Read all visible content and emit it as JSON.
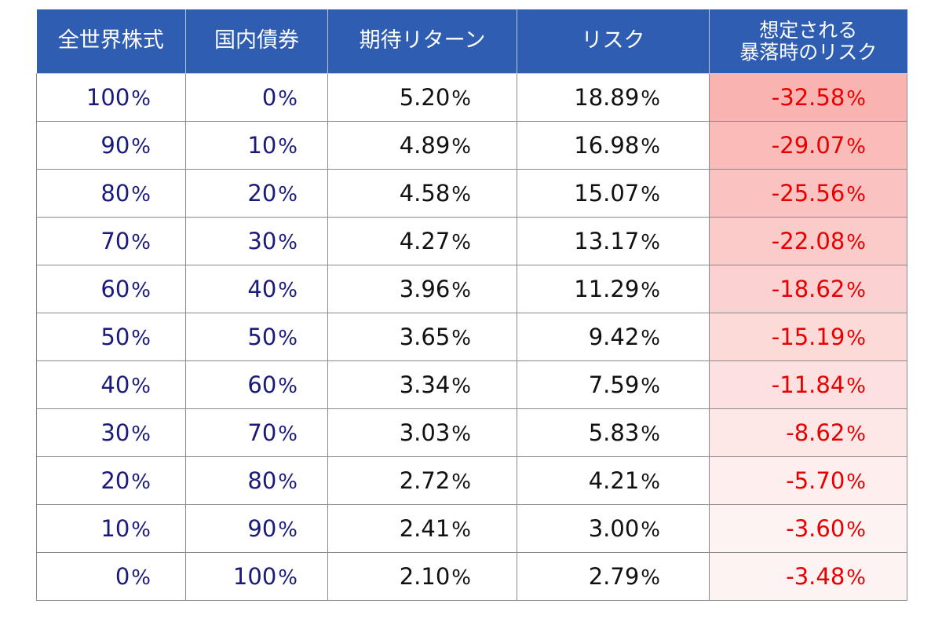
{
  "table": {
    "headers": {
      "stock": "全世界株式",
      "bond": "国内債券",
      "expected_return": "期待リターン",
      "risk": "リスク",
      "crash_risk_line1": "想定される",
      "crash_risk_line2": "暴落時のリスク"
    },
    "percent_sign": "%",
    "rows": [
      {
        "stock": "100",
        "bond": "0",
        "ret": "5.20",
        "risk": "18.89",
        "crash": "-32.58"
      },
      {
        "stock": "90",
        "bond": "10",
        "ret": "4.89",
        "risk": "16.98",
        "crash": "-29.07"
      },
      {
        "stock": "80",
        "bond": "20",
        "ret": "4.58",
        "risk": "15.07",
        "crash": "-25.56"
      },
      {
        "stock": "70",
        "bond": "30",
        "ret": "4.27",
        "risk": "13.17",
        "crash": "-22.08"
      },
      {
        "stock": "60",
        "bond": "40",
        "ret": "3.96",
        "risk": "11.29",
        "crash": "-18.62"
      },
      {
        "stock": "50",
        "bond": "50",
        "ret": "3.65",
        "risk": "9.42",
        "crash": "-15.19"
      },
      {
        "stock": "40",
        "bond": "60",
        "ret": "3.34",
        "risk": "7.59",
        "crash": "-11.84"
      },
      {
        "stock": "30",
        "bond": "70",
        "ret": "3.03",
        "risk": "5.83",
        "crash": "-8.62"
      },
      {
        "stock": "20",
        "bond": "80",
        "ret": "2.72",
        "risk": "4.21",
        "crash": "-5.70"
      },
      {
        "stock": "10",
        "bond": "90",
        "ret": "2.41",
        "risk": "3.00",
        "crash": "-3.60"
      },
      {
        "stock": "0",
        "bond": "100",
        "ret": "2.10",
        "risk": "2.79",
        "crash": "-3.48"
      }
    ]
  },
  "colors": {
    "header_bg": "#2f5db1",
    "header_text": "#ffffff",
    "allocation_text": "#1a1a7a",
    "value_text": "#111111",
    "crash_text": "#e60000",
    "crash_heat_max": "#f9b4b1",
    "crash_heat_min": "#fef3f3"
  }
}
